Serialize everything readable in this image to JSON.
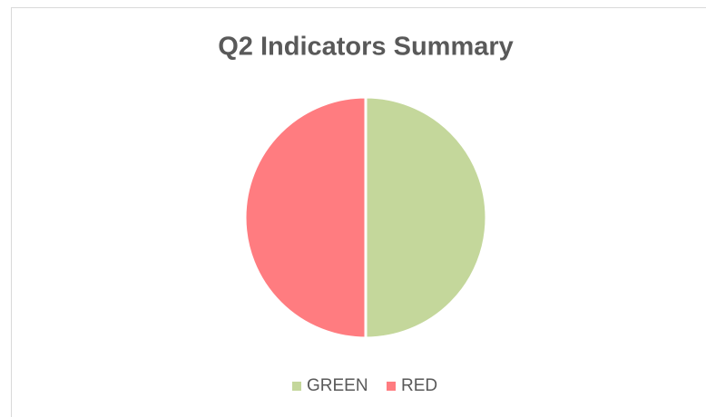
{
  "chart_data": {
    "type": "pie",
    "title": "Q2 Indicators Summary",
    "categories": [
      "GREEN",
      "RED"
    ],
    "values": [
      50,
      50
    ],
    "colors": [
      "#c4d79b",
      "#ff7c80"
    ],
    "legend": "bottom"
  }
}
